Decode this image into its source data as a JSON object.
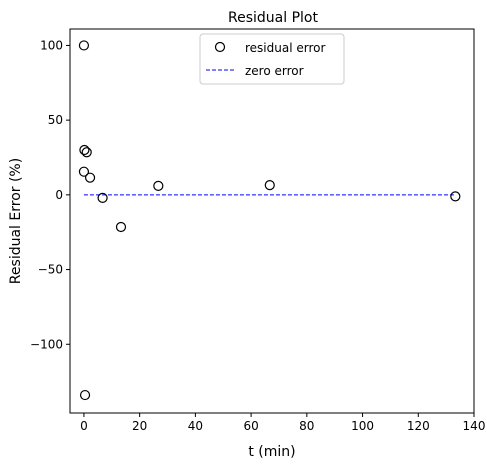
{
  "chart_data": {
    "type": "scatter",
    "title": "Residual Plot",
    "xlabel": "t (min)",
    "ylabel": "Residual Error (%)",
    "xlim": [
      -5,
      140
    ],
    "ylim": [
      -146,
      111
    ],
    "xticks": [
      0,
      20,
      40,
      60,
      80,
      100,
      120,
      140
    ],
    "yticks": [
      -100,
      -50,
      0,
      50,
      100
    ],
    "xtick_labels": [
      "0",
      "20",
      "40",
      "60",
      "80",
      "100",
      "120",
      "140"
    ],
    "ytick_labels": [
      "−100",
      "−50",
      "0",
      "50",
      "100"
    ],
    "grid": false,
    "legend_position": "top-center",
    "series": [
      {
        "name": "residual error",
        "marker": "open-circle",
        "color": "#000000",
        "x": [
          0,
          0,
          0.17,
          1.0,
          2.2,
          6.7,
          13.3,
          26.7,
          66.7,
          133.3
        ],
        "y": [
          100,
          15.5,
          30,
          28.5,
          11.5,
          -2,
          -21.5,
          6,
          6.5,
          -1
        ],
        "outlier": {
          "x": 0.4,
          "y": -134
        }
      },
      {
        "name": "zero error",
        "style": "dashed-line",
        "color": "#0000ff",
        "x": [
          0,
          133.3
        ],
        "y": [
          0,
          0
        ]
      }
    ]
  }
}
